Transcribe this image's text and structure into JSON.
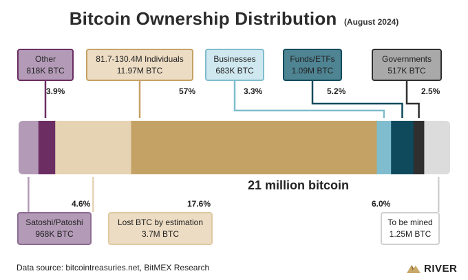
{
  "title": "Bitcoin Ownership Distribution",
  "subtitle": "(August 2024)",
  "total_label": "21 million bitcoin",
  "footer": "Data source: bitcointreasuries.net, BitMEX Research",
  "brand": "RIVER",
  "colors": {
    "satoshi": "#b39bb7",
    "other": "#6b2d62",
    "lost": "#e6d3b3",
    "individuals": "#c4a164",
    "businesses": "#7fbccd",
    "funds": "#0e4a5c",
    "governments": "#2f2f2f",
    "to_be_mined": "#dcdcdc"
  },
  "chart_data": {
    "type": "bar",
    "orientation": "horizontal-stacked",
    "title": "Bitcoin Ownership Distribution",
    "subtitle": "(August 2024)",
    "total": "21 million bitcoin",
    "segments": [
      {
        "key": "satoshi",
        "name": "Satoshi/Patoshi",
        "amount": "968K BTC",
        "percent_label": "4.6%",
        "percent": 4.6
      },
      {
        "key": "other",
        "name": "Other",
        "amount": "818K BTC",
        "percent_label": "3.9%",
        "percent": 3.9
      },
      {
        "key": "lost",
        "name": "Lost BTC by estimation",
        "amount": "3.7M BTC",
        "percent_label": "17.6%",
        "percent": 17.6
      },
      {
        "key": "individuals",
        "name": "81.7-130.4M Individuals",
        "amount": "11.97M BTC",
        "percent_label": "57%",
        "percent": 57
      },
      {
        "key": "businesses",
        "name": "Businesses",
        "amount": "683K BTC",
        "percent_label": "3.3%",
        "percent": 3.3
      },
      {
        "key": "funds",
        "name": "Funds/ETFs",
        "amount": "1.09M BTC",
        "percent_label": "5.2%",
        "percent": 5.2
      },
      {
        "key": "governments",
        "name": "Governments",
        "amount": "517K BTC",
        "percent_label": "2.5%",
        "percent": 2.5
      },
      {
        "key": "to_be_mined",
        "name": "To be mined",
        "amount": "1.25M BTC",
        "percent_label": "6.0%",
        "percent": 6.0
      }
    ]
  }
}
